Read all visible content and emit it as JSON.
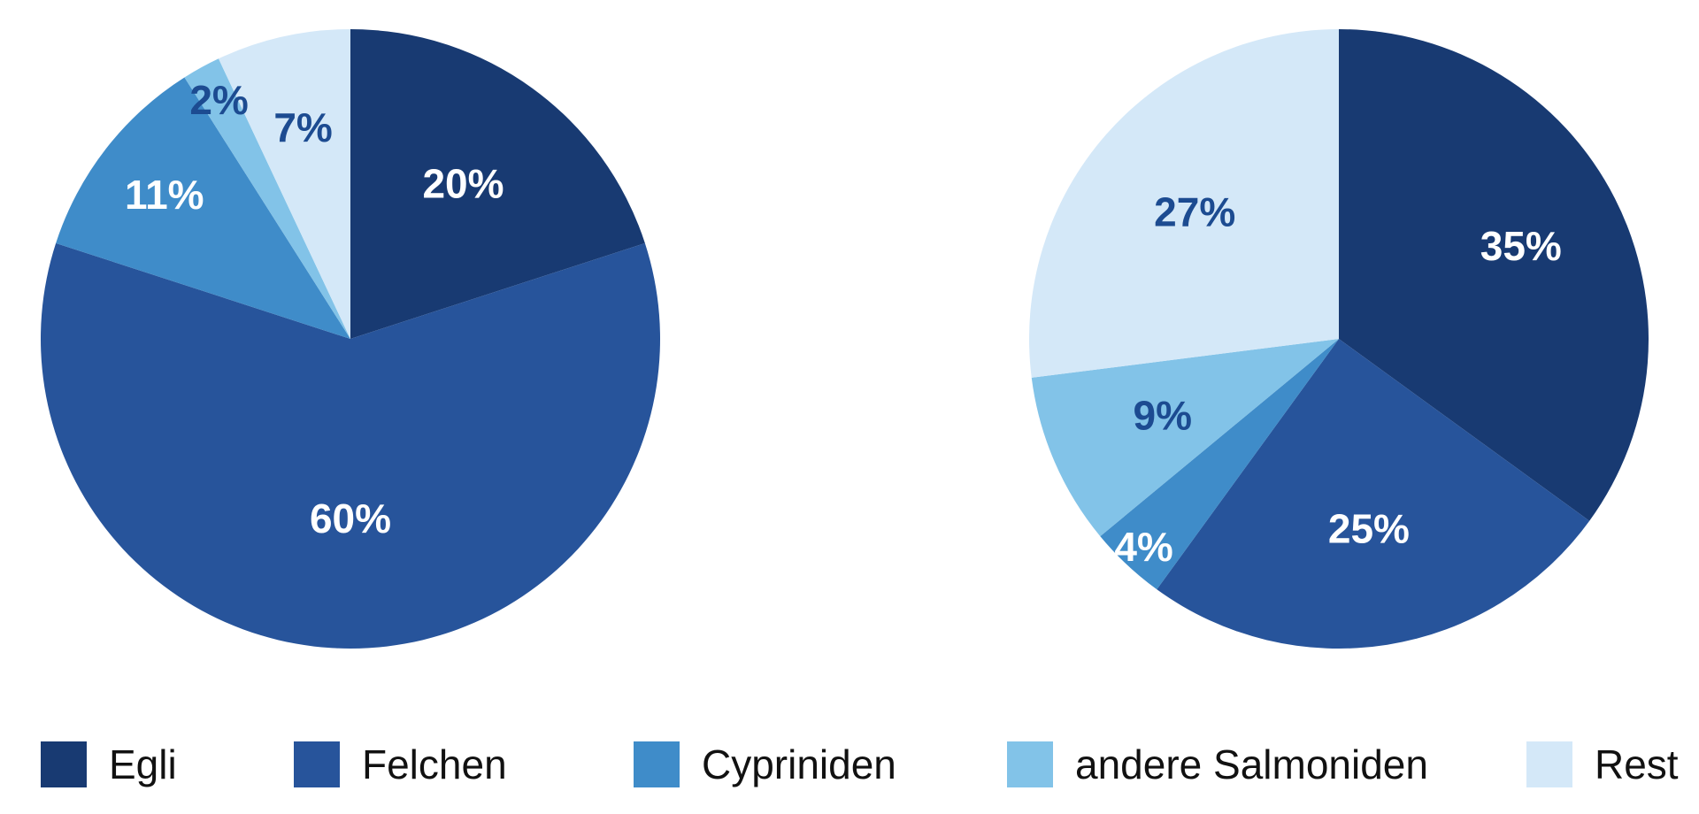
{
  "page": {
    "background": "#ffffff",
    "label_text_navy": "#1C4B91",
    "legend_text_color": "#111111"
  },
  "chart_data": [
    {
      "type": "pie",
      "name": "left",
      "direction": "clockwise",
      "start_angle_deg": 0,
      "radius_px": 350,
      "slices": [
        {
          "label": "Egli",
          "value": 20,
          "display": "20%",
          "color": "#183A72",
          "text_color": "#FFFFFF",
          "label_r": 0.62
        },
        {
          "label": "Felchen",
          "value": 60,
          "display": "60%",
          "color": "#27549B",
          "text_color": "#FFFFFF",
          "label_r": 0.58
        },
        {
          "label": "Cypriniden",
          "value": 11,
          "display": "11%",
          "color": "#3F8CC9",
          "text_color": "#FFFFFF",
          "label_r": 0.76
        },
        {
          "label": "andere Salmoniden",
          "value": 2,
          "display": "2%",
          "color": "#82C3E8",
          "text_color": "#1C4B91",
          "label_r": 0.88
        },
        {
          "label": "Rest",
          "value": 7,
          "display": "7%",
          "color": "#D4E8F8",
          "text_color": "#1C4B91",
          "label_r": 0.7
        }
      ]
    },
    {
      "type": "pie",
      "name": "right",
      "direction": "clockwise",
      "start_angle_deg": 0,
      "radius_px": 350,
      "slices": [
        {
          "label": "Egli",
          "value": 35,
          "display": "35%",
          "color": "#183A72",
          "text_color": "#FFFFFF",
          "label_r": 0.66
        },
        {
          "label": "Felchen",
          "value": 25,
          "display": "25%",
          "color": "#27549B",
          "text_color": "#FFFFFF",
          "label_r": 0.62
        },
        {
          "label": "Cypriniden",
          "value": 4,
          "display": "4%",
          "color": "#3F8CC9",
          "text_color": "#FFFFFF",
          "label_r": 0.92
        },
        {
          "label": "andere Salmoniden",
          "value": 9,
          "display": "9%",
          "color": "#82C3E8",
          "text_color": "#1C4B91",
          "label_r": 0.62
        },
        {
          "label": "Rest",
          "value": 27,
          "display": "27%",
          "color": "#D4E8F8",
          "text_color": "#1C4B91",
          "label_r": 0.62
        }
      ]
    }
  ],
  "legend": {
    "items": [
      {
        "label": "Egli",
        "color": "#183A72"
      },
      {
        "label": "Felchen",
        "color": "#27549B"
      },
      {
        "label": "Cypriniden",
        "color": "#3F8CC9"
      },
      {
        "label": "andere Salmoniden",
        "color": "#82C3E8"
      },
      {
        "label": "Rest",
        "color": "#D4E8F8"
      }
    ]
  }
}
